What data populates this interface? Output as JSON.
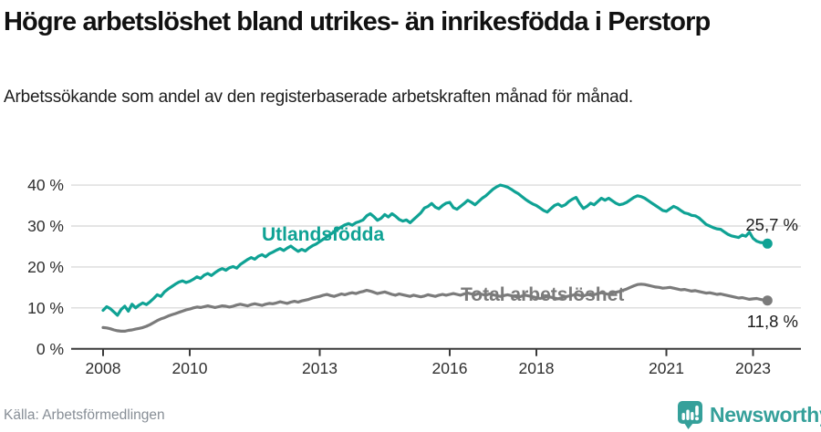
{
  "header": {
    "title": "Högre arbetslöshet bland utrikes- än inrikesfödda i Perstorp",
    "subtitle": "Arbetssökande som andel av den registerbaserade arbetskraften månad för månad."
  },
  "footer": {
    "source": "Källa: Arbetsförmedlingen",
    "brand": "Newsworthy",
    "brand_color": "#35a09a"
  },
  "chart_data": {
    "type": "line",
    "unit": "%",
    "frequency": "monthly",
    "x_start": "2008-01",
    "x_end": "2023-05",
    "ylim": [
      0,
      42
    ],
    "grid": true,
    "y_ticks": [
      {
        "value": 0,
        "label": "0 %"
      },
      {
        "value": 10,
        "label": "10 %"
      },
      {
        "value": 20,
        "label": "20 %"
      },
      {
        "value": 30,
        "label": "30 %"
      },
      {
        "value": 40,
        "label": "40 %"
      }
    ],
    "x_ticks": [
      {
        "year": 2008,
        "label": "2008"
      },
      {
        "year": 2010,
        "label": "2010"
      },
      {
        "year": 2013,
        "label": "2013"
      },
      {
        "year": 2016,
        "label": "2016"
      },
      {
        "year": 2018,
        "label": "2018"
      },
      {
        "year": 2021,
        "label": "2021"
      },
      {
        "year": 2023,
        "label": "2023"
      }
    ],
    "series": [
      {
        "name": "Utlandsfödda",
        "color": "#0FA294",
        "end_label": "25,7 %",
        "end_value": 25.7,
        "values": [
          9.4,
          10.3,
          9.8,
          9.0,
          8.2,
          9.6,
          10.4,
          9.2,
          10.9,
          10.0,
          10.7,
          11.2,
          10.8,
          11.5,
          12.3,
          13.2,
          12.8,
          13.9,
          14.6,
          15.2,
          15.8,
          16.3,
          16.6,
          16.2,
          16.5,
          17.0,
          17.6,
          17.2,
          18.0,
          18.4,
          17.9,
          18.6,
          19.2,
          19.6,
          19.2,
          19.8,
          20.1,
          19.7,
          20.6,
          21.2,
          21.8,
          22.3,
          21.9,
          22.6,
          23.0,
          22.5,
          23.2,
          23.6,
          24.1,
          24.5,
          24.0,
          24.6,
          25.1,
          24.4,
          23.8,
          24.3,
          23.9,
          24.6,
          25.2,
          25.6,
          26.2,
          26.8,
          27.4,
          28.0,
          28.6,
          29.2,
          29.8,
          30.3,
          30.6,
          30.2,
          30.8,
          31.1,
          31.5,
          32.5,
          33.0,
          32.3,
          31.4,
          31.9,
          32.8,
          32.2,
          33.0,
          32.4,
          31.6,
          31.2,
          31.5,
          30.8,
          31.6,
          32.4,
          33.2,
          34.4,
          34.8,
          35.5,
          34.6,
          34.2,
          35.0,
          35.6,
          35.8,
          34.5,
          34.1,
          34.8,
          35.5,
          36.3,
          35.8,
          35.2,
          36.0,
          36.8,
          37.4,
          38.2,
          39.0,
          39.6,
          40.0,
          39.8,
          39.5,
          39.0,
          38.4,
          37.9,
          37.2,
          36.5,
          35.9,
          35.4,
          35.0,
          34.4,
          33.8,
          33.4,
          34.2,
          35.0,
          35.4,
          34.8,
          35.2,
          36.0,
          36.6,
          37.0,
          35.5,
          34.3,
          34.8,
          35.6,
          35.2,
          36.0,
          36.8,
          36.3,
          36.8,
          36.2,
          35.6,
          35.2,
          35.4,
          35.8,
          36.4,
          37.0,
          37.4,
          37.2,
          36.8,
          36.2,
          35.6,
          35.0,
          34.4,
          33.8,
          33.6,
          34.2,
          34.8,
          34.4,
          33.8,
          33.2,
          33.0,
          32.6,
          32.5,
          32.0,
          31.2,
          30.4,
          30.0,
          29.6,
          29.3,
          29.2,
          28.6,
          28.0,
          27.6,
          27.4,
          27.2,
          27.8,
          27.5,
          28.5,
          27.0,
          26.3,
          26.0,
          25.9,
          25.7
        ]
      },
      {
        "name": "Total arbetslöshet",
        "color": "#7b7b7b",
        "end_label": "11,8 %",
        "end_value": 11.8,
        "values": [
          5.2,
          5.1,
          4.9,
          4.6,
          4.4,
          4.3,
          4.3,
          4.5,
          4.6,
          4.8,
          5.0,
          5.2,
          5.5,
          5.9,
          6.4,
          6.9,
          7.3,
          7.6,
          8.0,
          8.3,
          8.6,
          8.9,
          9.2,
          9.5,
          9.7,
          10.0,
          10.2,
          10.1,
          10.3,
          10.5,
          10.3,
          10.1,
          10.3,
          10.5,
          10.4,
          10.2,
          10.4,
          10.7,
          10.9,
          10.7,
          10.5,
          10.8,
          11.0,
          10.8,
          10.6,
          10.9,
          11.1,
          11.0,
          11.2,
          11.5,
          11.3,
          11.1,
          11.4,
          11.6,
          11.4,
          11.7,
          11.9,
          12.1,
          12.4,
          12.6,
          12.8,
          13.1,
          13.3,
          13.0,
          12.8,
          13.1,
          13.4,
          13.2,
          13.5,
          13.7,
          13.5,
          13.8,
          14.0,
          14.3,
          14.1,
          13.8,
          13.5,
          13.7,
          13.9,
          13.6,
          13.3,
          13.1,
          13.4,
          13.2,
          13.0,
          12.8,
          13.1,
          12.9,
          12.7,
          12.9,
          13.2,
          13.0,
          12.8,
          13.1,
          13.3,
          13.1,
          13.3,
          13.5,
          13.3,
          13.1,
          13.4,
          13.6,
          13.4,
          13.2,
          13.5,
          13.3,
          13.1,
          13.4,
          13.2,
          13.0,
          12.8,
          13.0,
          13.2,
          13.0,
          12.8,
          12.6,
          12.9,
          13.1,
          12.9,
          12.7,
          12.5,
          12.3,
          12.5,
          12.8,
          12.6,
          12.4,
          12.2,
          12.5,
          12.7,
          12.9,
          13.1,
          13.3,
          13.1,
          12.9,
          13.2,
          13.4,
          13.2,
          13.5,
          13.7,
          13.5,
          13.3,
          13.6,
          13.8,
          14.0,
          14.3,
          14.6,
          15.0,
          15.4,
          15.7,
          15.8,
          15.7,
          15.5,
          15.3,
          15.1,
          15.0,
          14.8,
          14.9,
          15.0,
          14.8,
          14.6,
          14.4,
          14.5,
          14.3,
          14.1,
          14.2,
          14.0,
          13.8,
          13.6,
          13.7,
          13.5,
          13.3,
          13.4,
          13.2,
          13.0,
          12.8,
          12.6,
          12.4,
          12.5,
          12.3,
          12.1,
          12.2,
          12.3,
          12.1,
          11.9,
          11.8
        ]
      }
    ]
  }
}
